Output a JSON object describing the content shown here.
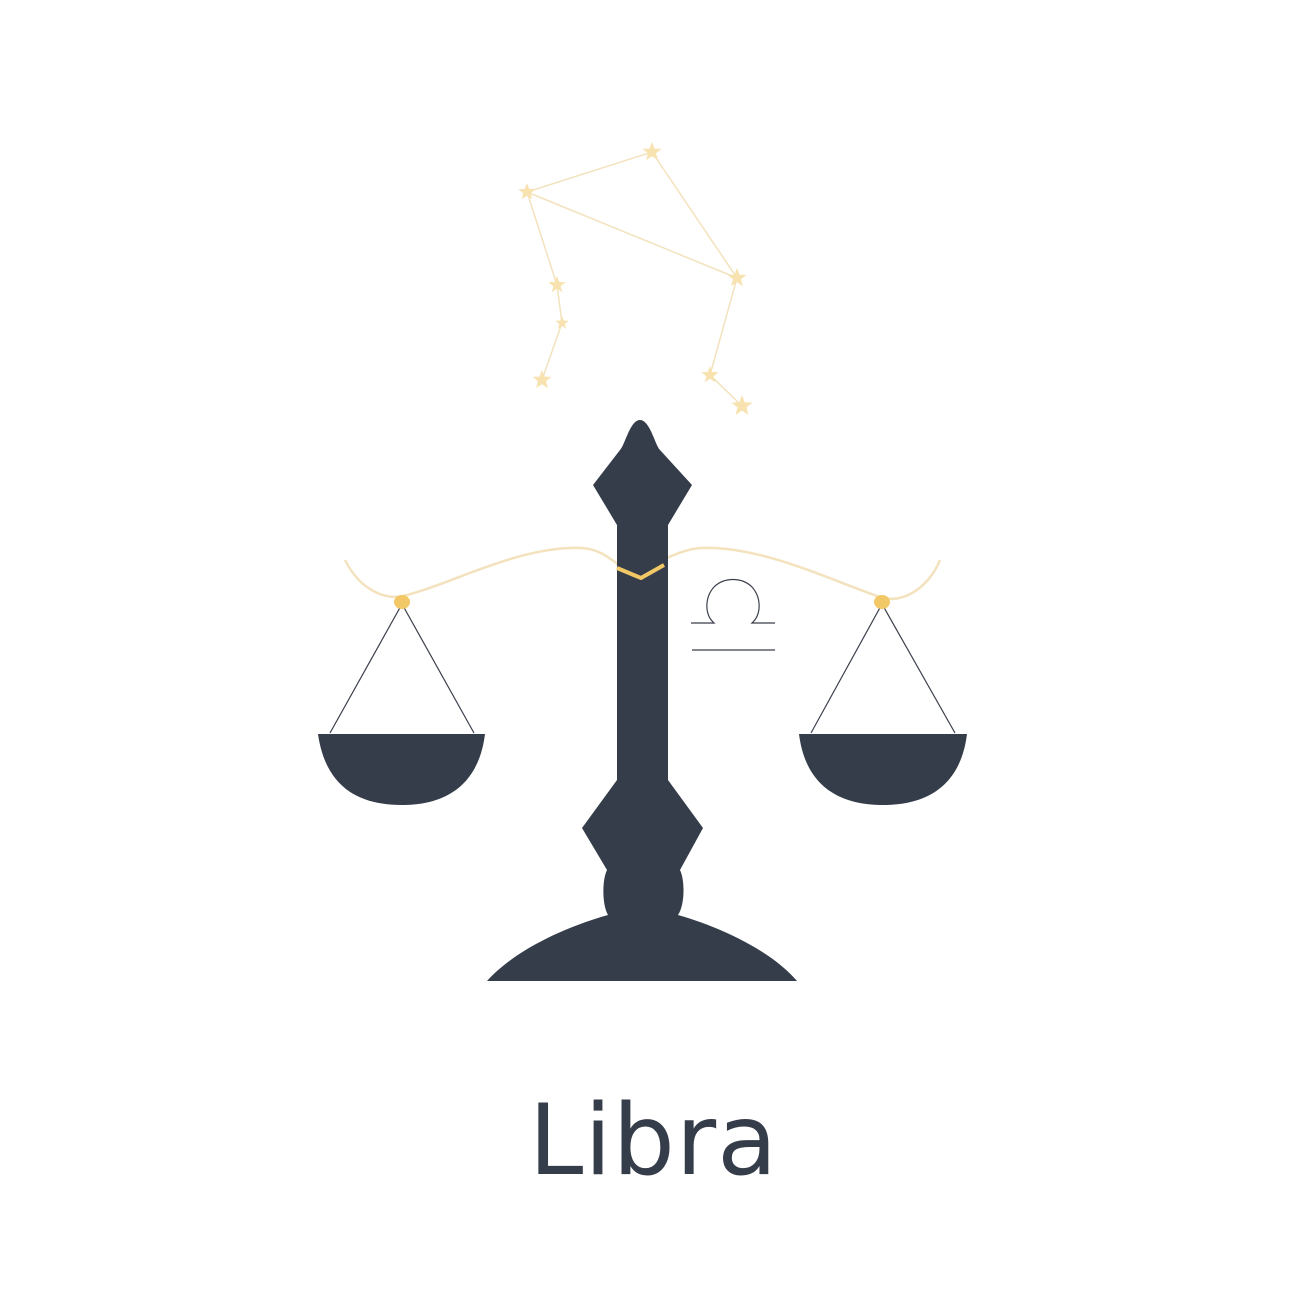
{
  "sign": {
    "name": "Libra",
    "symbol_icon": "libra-symbol-icon",
    "illustration_icon": "balance-scale-icon",
    "constellation_icon": "libra-constellation-icon"
  },
  "colors": {
    "background": "#ffffff",
    "ink": "#363d4a",
    "star": "#f7e2b0",
    "star_line": "#f3e2bd",
    "gold": "#f2c867",
    "thin_line": "#3a3f4b"
  }
}
